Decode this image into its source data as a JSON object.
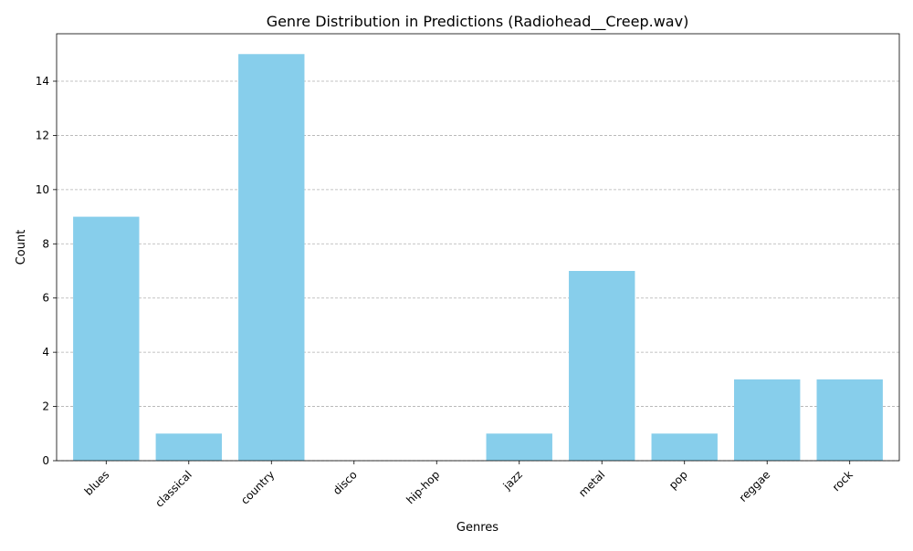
{
  "chart_data": {
    "type": "bar",
    "title": "Genre Distribution in Predictions (Radiohead__Creep.wav)",
    "xlabel": "Genres",
    "ylabel": "Count",
    "categories": [
      "blues",
      "classical",
      "country",
      "disco",
      "hip-hop",
      "jazz",
      "metal",
      "pop",
      "reggae",
      "rock"
    ],
    "values": [
      9,
      1,
      15,
      0,
      0,
      1,
      7,
      1,
      3,
      3
    ],
    "ylim": [
      0,
      15.75
    ],
    "yticks": [
      0,
      2,
      4,
      6,
      8,
      10,
      12,
      14
    ],
    "grid": "y-dashed",
    "legend": "none",
    "bar_color": "#87ceeb",
    "grid_color": "#b0b0b0"
  }
}
